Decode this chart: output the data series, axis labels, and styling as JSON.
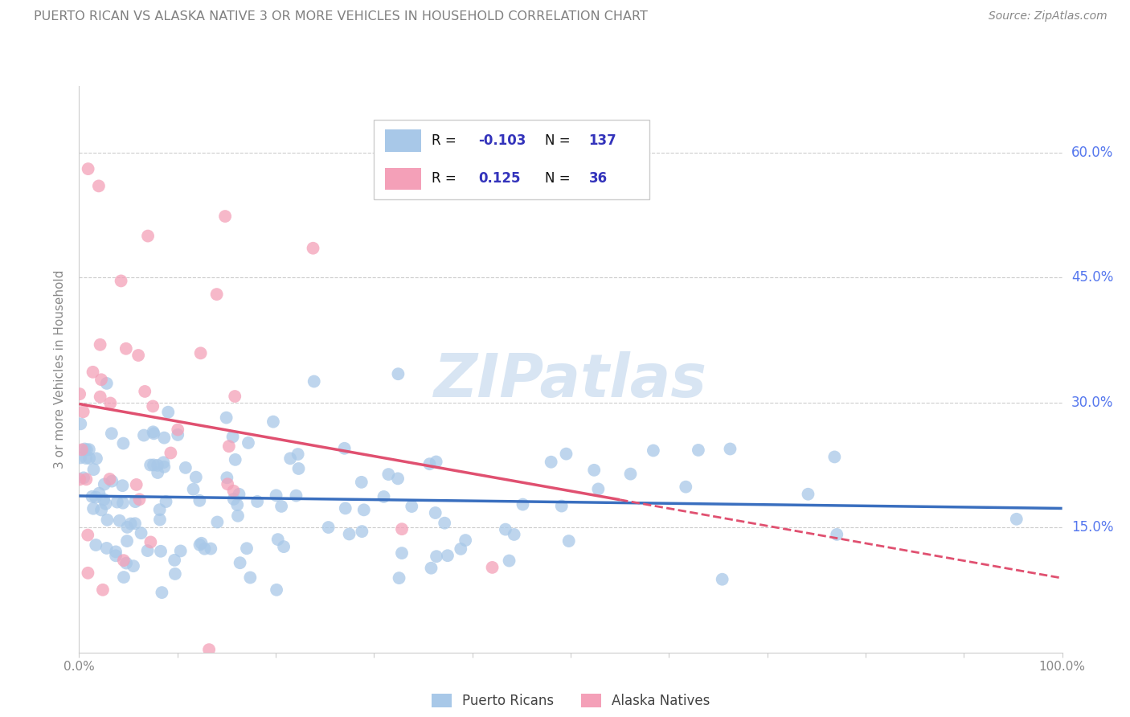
{
  "title": "PUERTO RICAN VS ALASKA NATIVE 3 OR MORE VEHICLES IN HOUSEHOLD CORRELATION CHART",
  "source": "Source: ZipAtlas.com",
  "ylabel": "3 or more Vehicles in Household",
  "yticks": [
    "15.0%",
    "30.0%",
    "45.0%",
    "60.0%"
  ],
  "ytick_vals": [
    0.15,
    0.3,
    0.45,
    0.6
  ],
  "watermark": "ZIPatlas",
  "blue_color": "#a8c8e8",
  "pink_color": "#f4a0b8",
  "blue_line_color": "#3a6fbf",
  "pink_line_color": "#e05070",
  "title_color": "#808080",
  "axis_color": "#cccccc",
  "grid_color": "#cccccc",
  "tick_label_color": "#888888",
  "right_tick_color": "#5577ee",
  "legend_text_color": "#3333bb",
  "blue_R": -0.103,
  "blue_N": 137,
  "pink_R": 0.125,
  "pink_N": 36,
  "xlim": [
    0.0,
    1.0
  ],
  "ylim": [
    0.0,
    0.68
  ],
  "blue_seed": 42,
  "pink_seed": 99
}
